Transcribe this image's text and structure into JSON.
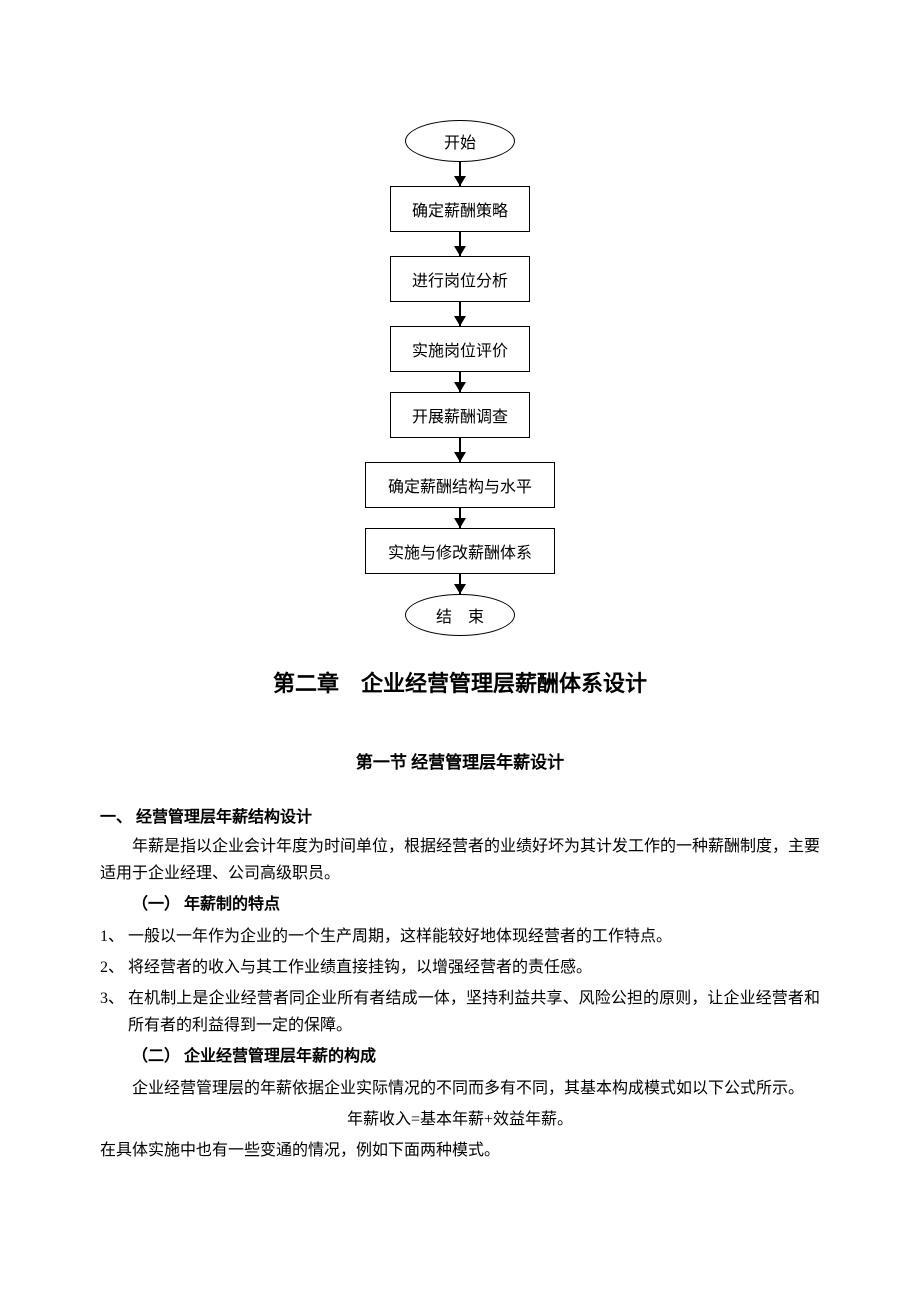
{
  "flowchart": {
    "type": "flowchart",
    "orientation": "vertical",
    "node_border_color": "#000000",
    "node_fill_color": "#ffffff",
    "node_text_color": "#000000",
    "arrow_color": "#000000",
    "node_fontsize": 16,
    "nodes": [
      {
        "id": "start",
        "shape": "terminal",
        "label": "开始"
      },
      {
        "id": "n1",
        "shape": "process",
        "label": "确定薪酬策略"
      },
      {
        "id": "n2",
        "shape": "process",
        "label": "进行岗位分析"
      },
      {
        "id": "n3",
        "shape": "process",
        "label": "实施岗位评价"
      },
      {
        "id": "n4",
        "shape": "process",
        "label": "开展薪酬调查"
      },
      {
        "id": "n5",
        "shape": "process",
        "label": "确定薪酬结构与水平",
        "wide": true
      },
      {
        "id": "n6",
        "shape": "process",
        "label": "实施与修改薪酬体系",
        "wide": true
      },
      {
        "id": "end",
        "shape": "terminal",
        "label": "结　束"
      }
    ],
    "edges": [
      {
        "from": "start",
        "to": "n1",
        "length": 24
      },
      {
        "from": "n1",
        "to": "n2",
        "length": 24
      },
      {
        "from": "n2",
        "to": "n3",
        "length": 24
      },
      {
        "from": "n3",
        "to": "n4",
        "length": 20
      },
      {
        "from": "n4",
        "to": "n5",
        "length": 24
      },
      {
        "from": "n5",
        "to": "n6",
        "length": 20
      },
      {
        "from": "n6",
        "to": "end",
        "length": 20
      }
    ]
  },
  "chapter": {
    "title": "第二章　企业经营管理层薪酬体系设计"
  },
  "section": {
    "title": "第一节  经营管理层年薪设计"
  },
  "subsection1": {
    "heading": "一、 经营管理层年薪结构设计",
    "para1": "年薪是指以企业会计年度为时间单位，根据经营者的业绩好坏为其计发工作的一种薪酬制度，主要适用于企业经理、公司高级职员。",
    "sub1": {
      "heading": "（一） 年薪制的特点",
      "items": [
        {
          "num": "1、",
          "text": "一般以一年作为企业的一个生产周期，这样能较好地体现经营者的工作特点。"
        },
        {
          "num": "2、",
          "text": "将经营者的收入与其工作业绩直接挂钩，以增强经营者的责任感。"
        },
        {
          "num": "3、",
          "text": "在机制上是企业经营者同企业所有者结成一体，坚持利益共享、风险公担的原则，让企业经营者和所有者的利益得到一定的保障。"
        }
      ]
    },
    "sub2": {
      "heading": "（二） 企业经营管理层年薪的构成",
      "para": "企业经营管理层的年薪依据企业实际情况的不同而多有不同，其基本构成模式如以下公式所示。",
      "formula": "年薪收入=基本年薪+效益年薪。",
      "para2": "在具体实施中也有一些变通的情况，例如下面两种模式。"
    }
  },
  "styles": {
    "page_background": "#ffffff",
    "text_color": "#000000",
    "body_fontsize": 16,
    "chapter_fontsize": 22,
    "section_fontsize": 17,
    "line_height": 1.7
  }
}
